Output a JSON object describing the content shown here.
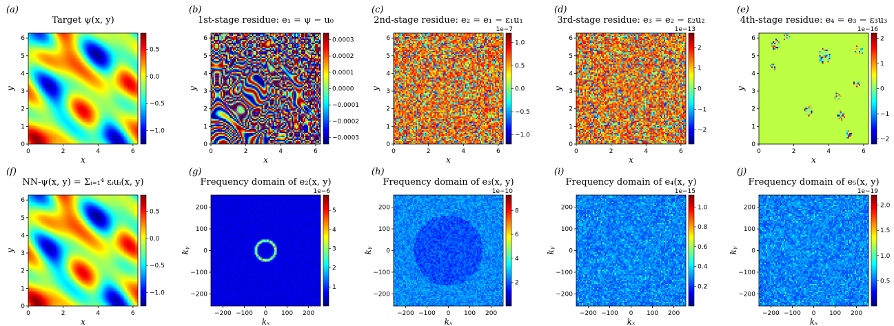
{
  "chart_data": [
    {
      "id": "a",
      "panel_label": "(a)",
      "type": "heatmap",
      "title": "Target ψ(x, y)",
      "xlabel": "x",
      "ylabel": "y",
      "xlim": [
        0,
        6.28
      ],
      "ylim": [
        0,
        6.28
      ],
      "xticks": [
        0,
        2,
        4,
        6
      ],
      "yticks": [
        0,
        1,
        2,
        3,
        4,
        5,
        6
      ],
      "colormap": "jet",
      "pattern": "smooth",
      "colorbar": {
        "range": [
          -1.25,
          0.8
        ],
        "ticks": [
          "0.5",
          "0.0",
          "−0.5",
          "−1.0"
        ],
        "tick_values": [
          0.5,
          0.0,
          -0.5,
          -1.0
        ],
        "exponent": ""
      }
    },
    {
      "id": "b",
      "panel_label": "(b)",
      "type": "heatmap",
      "title": "1st-stage residue: e₁ = ψ − u₀",
      "xlabel": "x",
      "ylabel": "y",
      "xlim": [
        0,
        6.28
      ],
      "ylim": [
        0,
        6.28
      ],
      "xticks": [
        0,
        2,
        4,
        6
      ],
      "yticks": [
        0,
        1,
        2,
        3,
        4,
        5,
        6
      ],
      "colormap": "jet",
      "pattern": "streaks",
      "colorbar": {
        "range": [
          -0.00034,
          0.00034
        ],
        "ticks": [
          "0.0003",
          "0.0002",
          "0.0001",
          "0.0000",
          "−0.0001",
          "−0.0002",
          "−0.0003"
        ],
        "tick_values": [
          0.0003,
          0.0002,
          0.0001,
          0.0,
          -0.0001,
          -0.0002,
          -0.0003
        ],
        "exponent": ""
      }
    },
    {
      "id": "c",
      "panel_label": "(c)",
      "type": "heatmap",
      "title": "2nd-stage residue: e₂ = e₁ − ε₁u₁",
      "xlabel": "x",
      "ylabel": "y",
      "xlim": [
        0,
        6.28
      ],
      "ylim": [
        0,
        6.28
      ],
      "xticks": [
        0,
        2,
        4,
        6
      ],
      "yticks": [
        0,
        1,
        2,
        3,
        4,
        5,
        6
      ],
      "colormap": "jet",
      "pattern": "noise",
      "colorbar": {
        "range": [
          -1.2,
          1.2
        ],
        "ticks": [
          "1.0",
          "0.5",
          "0.0",
          "−0.5",
          "−1.0"
        ],
        "tick_values": [
          1.0,
          0.5,
          0.0,
          -0.5,
          -1.0
        ],
        "exponent": "1e−7"
      }
    },
    {
      "id": "d",
      "panel_label": "(d)",
      "type": "heatmap",
      "title": "3rd-stage residue: e₃ = e₂ − ε₂u₂",
      "xlabel": "x",
      "ylabel": "y",
      "xlim": [
        0,
        6.28
      ],
      "ylim": [
        0,
        6.28
      ],
      "xticks": [
        0,
        2,
        4,
        6
      ],
      "yticks": [
        0,
        1,
        2,
        3,
        4,
        5,
        6
      ],
      "colormap": "jet",
      "pattern": "noise",
      "colorbar": {
        "range": [
          -2.7,
          2.7
        ],
        "ticks": [
          "2",
          "1",
          "0",
          "−1",
          "−2"
        ],
        "tick_values": [
          2,
          1,
          0,
          -1,
          -2
        ],
        "exponent": "1e−13"
      }
    },
    {
      "id": "e",
      "panel_label": "(e)",
      "type": "heatmap",
      "title": "4th-stage residue: e₄ = e₃ − ε₃u₃",
      "xlabel": "x",
      "ylabel": "y",
      "xlim": [
        0,
        6.28
      ],
      "ylim": [
        0,
        6.28
      ],
      "xticks": [
        0,
        2,
        4,
        6
      ],
      "yticks": [
        0,
        1,
        2,
        3,
        4,
        5,
        6
      ],
      "colormap": "jet",
      "pattern": "flat",
      "colorbar": {
        "range": [
          -2.2,
          2.2
        ],
        "ticks": [
          "2",
          "1",
          "0",
          "−1",
          "−2"
        ],
        "tick_values": [
          2,
          1,
          0,
          -1,
          -2
        ],
        "exponent": "1e−16"
      }
    },
    {
      "id": "f",
      "panel_label": "(f)",
      "type": "heatmap",
      "title": "NN-ψ(x, y) = Σᵢ₌₁⁴ εᵢuᵢ(x, y)",
      "xlabel": "x",
      "ylabel": "y",
      "xlim": [
        0,
        6.28
      ],
      "ylim": [
        0,
        6.28
      ],
      "xticks": [
        0,
        2,
        4,
        6
      ],
      "yticks": [
        0,
        1,
        2,
        3,
        4,
        5,
        6
      ],
      "colormap": "jet",
      "pattern": "smooth",
      "colorbar": {
        "range": [
          -1.25,
          0.8
        ],
        "ticks": [
          "0.5",
          "0.0",
          "−0.5",
          "−1.0"
        ],
        "tick_values": [
          0.5,
          0.0,
          -0.5,
          -1.0
        ],
        "exponent": ""
      }
    },
    {
      "id": "g",
      "panel_label": "(g)",
      "type": "heatmap",
      "title": "Frequency domain of e₂(x, y)",
      "xlabel": "kₓ",
      "ylabel": "kᵧ",
      "xlim": [
        -256,
        256
      ],
      "ylim": [
        -256,
        256
      ],
      "xticks": [
        -200,
        -100,
        0,
        100,
        200
      ],
      "yticks": [
        -200,
        -100,
        0,
        100,
        200
      ],
      "colormap": "jet",
      "pattern": "ring",
      "colorbar": {
        "range": [
          0,
          5.8
        ],
        "ticks": [
          "5",
          "4",
          "3",
          "2",
          "1"
        ],
        "tick_values": [
          5,
          4,
          3,
          2,
          1
        ],
        "exponent": "1e−6"
      }
    },
    {
      "id": "h",
      "panel_label": "(h)",
      "type": "heatmap",
      "title": "Frequency domain of e₃(x, y)",
      "xlabel": "kₓ",
      "ylabel": "kᵧ",
      "xlim": [
        -256,
        256
      ],
      "ylim": [
        -256,
        256
      ],
      "xticks": [
        -200,
        -100,
        0,
        100,
        200
      ],
      "yticks": [
        -200,
        -100,
        0,
        100,
        200
      ],
      "colormap": "jet",
      "pattern": "disk",
      "colorbar": {
        "range": [
          0,
          9.3
        ],
        "ticks": [
          "8",
          "6",
          "4",
          "2"
        ],
        "tick_values": [
          8,
          6,
          4,
          2
        ],
        "exponent": "1e−10"
      }
    },
    {
      "id": "i",
      "panel_label": "(i)",
      "type": "heatmap",
      "title": "Frequency domain of e₄(x, y)",
      "xlabel": "kₓ",
      "ylabel": "kᵧ",
      "xlim": [
        -256,
        256
      ],
      "ylim": [
        -256,
        256
      ],
      "xticks": [
        -200,
        -100,
        0,
        100,
        200
      ],
      "yticks": [
        -200,
        -100,
        0,
        100,
        200
      ],
      "colormap": "jet",
      "pattern": "freqnoise",
      "colorbar": {
        "range": [
          0,
          1.12
        ],
        "ticks": [
          "1.0",
          "0.8",
          "0.6",
          "0.4",
          "0.2"
        ],
        "tick_values": [
          1.0,
          0.8,
          0.6,
          0.4,
          0.2
        ],
        "exponent": "1e−15"
      }
    },
    {
      "id": "j",
      "panel_label": "(j)",
      "type": "heatmap",
      "title": "Frequency domain of e₅(x, y)",
      "xlabel": "kₓ",
      "ylabel": "kᵧ",
      "xlim": [
        -256,
        256
      ],
      "ylim": [
        -256,
        256
      ],
      "xticks": [
        -200,
        -100,
        0,
        100,
        200
      ],
      "yticks": [
        -200,
        -100,
        0,
        100,
        200
      ],
      "colormap": "jet",
      "pattern": "freqnoise",
      "colorbar": {
        "range": [
          0,
          2.2
        ],
        "ticks": [
          "2.0",
          "1.5",
          "1.0",
          "0.5"
        ],
        "tick_values": [
          2.0,
          1.5,
          1.0,
          0.5
        ],
        "exponent": "1e−19"
      }
    }
  ]
}
